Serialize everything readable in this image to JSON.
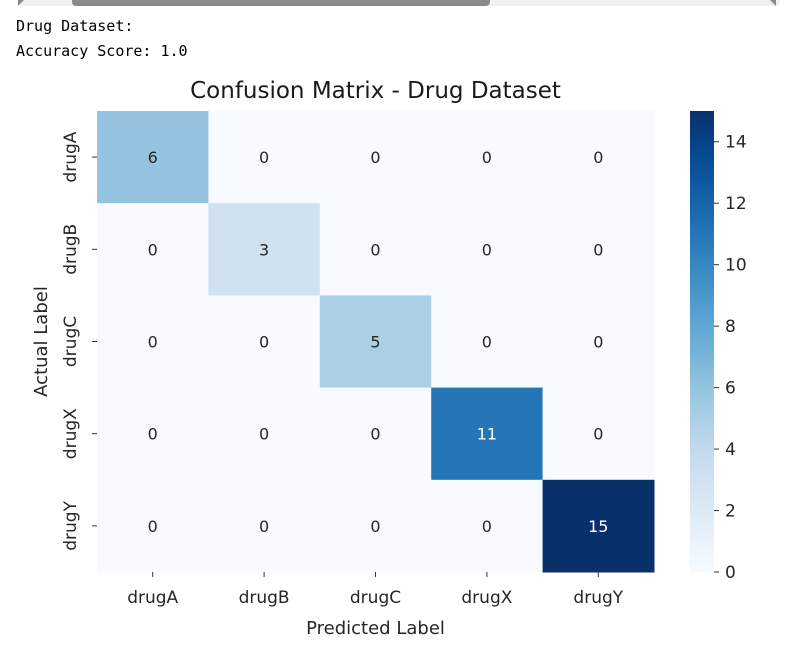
{
  "output": {
    "dataset_line": "Drug Dataset:",
    "accuracy_line": "Accuracy Score: 1.0"
  },
  "chart_data": {
    "type": "heatmap",
    "title": "Confusion Matrix - Drug Dataset",
    "xlabel": "Predicted Label",
    "ylabel": "Actual Label",
    "x_categories": [
      "drugA",
      "drugB",
      "drugC",
      "drugX",
      "drugY"
    ],
    "y_categories": [
      "drugA",
      "drugB",
      "drugC",
      "drugX",
      "drugY"
    ],
    "values": [
      [
        6,
        0,
        0,
        0,
        0
      ],
      [
        0,
        3,
        0,
        0,
        0
      ],
      [
        0,
        0,
        5,
        0,
        0
      ],
      [
        0,
        0,
        0,
        11,
        0
      ],
      [
        0,
        0,
        0,
        0,
        15
      ]
    ],
    "colormap": "Blues",
    "colorbar_range": [
      0,
      15
    ],
    "colorbar_ticks": [
      0,
      2,
      4,
      6,
      8,
      10,
      12,
      14
    ],
    "annotated": true
  }
}
